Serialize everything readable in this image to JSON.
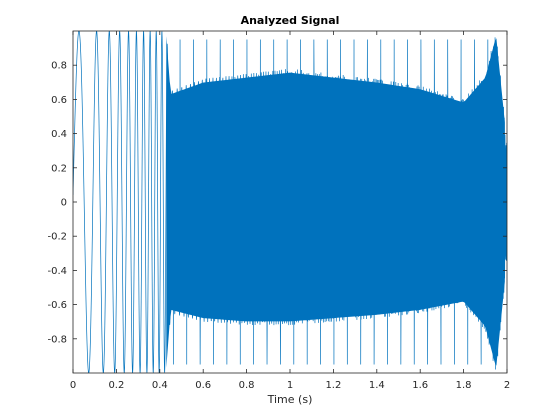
{
  "colors": {
    "background": "#ffffff",
    "axes_frame": "#262626",
    "signal": "#0072bd"
  },
  "chart_data": {
    "type": "line",
    "title": "Analyzed Signal",
    "xlabel": "Time (s)",
    "ylabel": "",
    "xlim": [
      0,
      2
    ],
    "ylim": [
      -1,
      1
    ],
    "grid": false,
    "legend": "none",
    "xticks": [
      0,
      0.2,
      0.4,
      0.6,
      0.8,
      1,
      1.2,
      1.4,
      1.6,
      1.8,
      2
    ],
    "xtick_labels": [
      "0",
      "0.2",
      "0.4",
      "0.6",
      "0.8",
      "1",
      "1.2",
      "1.4",
      "1.6",
      "1.8",
      "2"
    ],
    "yticks": [
      -0.8,
      -0.6,
      -0.4,
      -0.2,
      0,
      0.2,
      0.4,
      0.6,
      0.8
    ],
    "ytick_labels": [
      "-0.8",
      "-0.6",
      "-0.4",
      "-0.2",
      "0",
      "0.2",
      "0.4",
      "0.6",
      "0.8"
    ],
    "series": [
      {
        "color": "#0072bd",
        "description_points": {
          "x": [
            0,
            0.1,
            0.2,
            0.3,
            0.4,
            0.43,
            0.45,
            0.6,
            0.8,
            1.0,
            1.2,
            1.4,
            1.6,
            1.8,
            1.9,
            1.95,
            2.0
          ],
          "upper_envelope": [
            1.0,
            1.0,
            1.0,
            1.0,
            1.0,
            1.0,
            0.65,
            0.72,
            0.75,
            0.78,
            0.75,
            0.72,
            0.68,
            0.6,
            0.75,
            1.0,
            0.35
          ],
          "lower_envelope": [
            -1.0,
            -1.0,
            -1.0,
            -1.0,
            -1.0,
            -1.0,
            -0.65,
            -0.7,
            -0.72,
            -0.72,
            -0.7,
            -0.68,
            -0.65,
            -0.6,
            -0.75,
            -1.0,
            -0.35
          ]
        }
      }
    ]
  }
}
